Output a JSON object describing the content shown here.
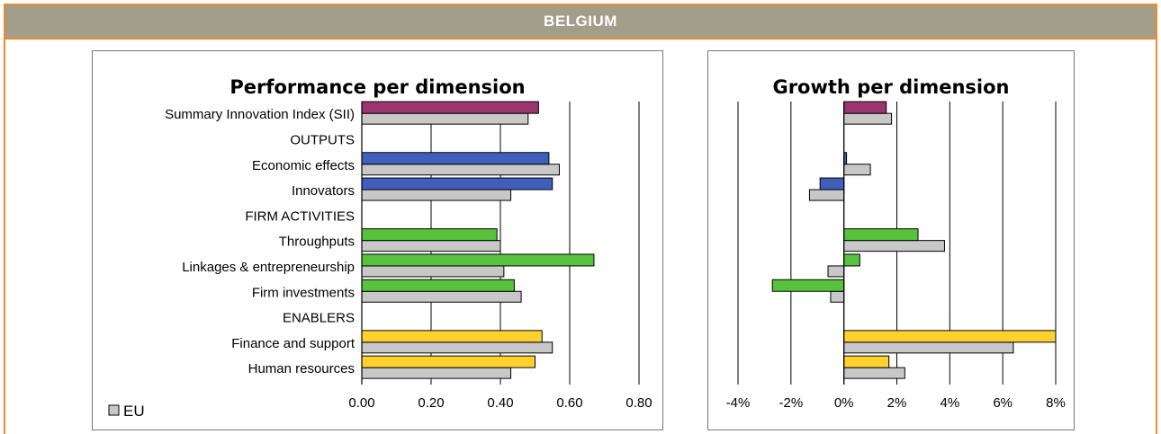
{
  "header": {
    "country": "BELGIUM"
  },
  "colors": {
    "banner": "#a29e8a",
    "border": "#ee8a2e",
    "sii": "#9b3670",
    "outputs": "#3f5fba",
    "firm_activities": "#58c23f",
    "enablers": "#ffd12e",
    "eu": "#c8c8c8"
  },
  "chart_data": [
    {
      "type": "bar",
      "orientation": "horizontal",
      "title": "Performance per dimension",
      "categories": [
        "Summary Innovation Index (SII)",
        "OUTPUTS",
        "Economic effects",
        "Innovators",
        "FIRM ACTIVITIES",
        "Throughputs",
        "Linkages & entrepreneurship",
        "Firm investments",
        "ENABLERS",
        "Finance and support",
        "Human resources"
      ],
      "category_groups": [
        "sii",
        "header",
        "outputs",
        "outputs",
        "header",
        "firm_activities",
        "firm_activities",
        "firm_activities",
        "header",
        "enablers",
        "enablers"
      ],
      "series": [
        {
          "values": [
            0.51,
            null,
            0.54,
            0.55,
            null,
            0.39,
            0.67,
            0.44,
            null,
            0.52,
            0.5
          ]
        },
        {
          "name": "EU",
          "values": [
            0.48,
            null,
            0.57,
            0.43,
            null,
            0.4,
            0.41,
            0.46,
            null,
            0.55,
            0.43
          ]
        }
      ],
      "xlim": [
        0,
        0.8
      ],
      "xticks": [
        "0.00",
        "0.20",
        "0.40",
        "0.60",
        "0.80"
      ],
      "legend": {
        "label": "EU",
        "placement": "bottom-left"
      },
      "grid": true
    },
    {
      "type": "bar",
      "orientation": "horizontal",
      "title": "Growth per dimension",
      "categories": [
        "Summary Innovation Index (SII)",
        "OUTPUTS",
        "Economic effects",
        "Innovators",
        "FIRM ACTIVITIES",
        "Throughputs",
        "Linkages & entrepreneurship",
        "Firm investments",
        "ENABLERS",
        "Finance and support",
        "Human resources"
      ],
      "category_groups": [
        "sii",
        "header",
        "outputs",
        "outputs",
        "header",
        "firm_activities",
        "firm_activities",
        "firm_activities",
        "header",
        "enablers",
        "enablers"
      ],
      "series": [
        {
          "values": [
            1.6,
            null,
            0.1,
            -0.9,
            null,
            2.8,
            0.6,
            -2.7,
            null,
            8.2,
            1.7
          ]
        },
        {
          "name": "EU",
          "values": [
            1.8,
            null,
            1.0,
            -1.3,
            null,
            3.8,
            -0.6,
            -0.5,
            null,
            6.4,
            2.3
          ]
        }
      ],
      "xlim": [
        -4,
        8
      ],
      "xticks": [
        "-4%",
        "-2%",
        "0%",
        "2%",
        "4%",
        "6%",
        "8%"
      ],
      "grid": true
    }
  ]
}
